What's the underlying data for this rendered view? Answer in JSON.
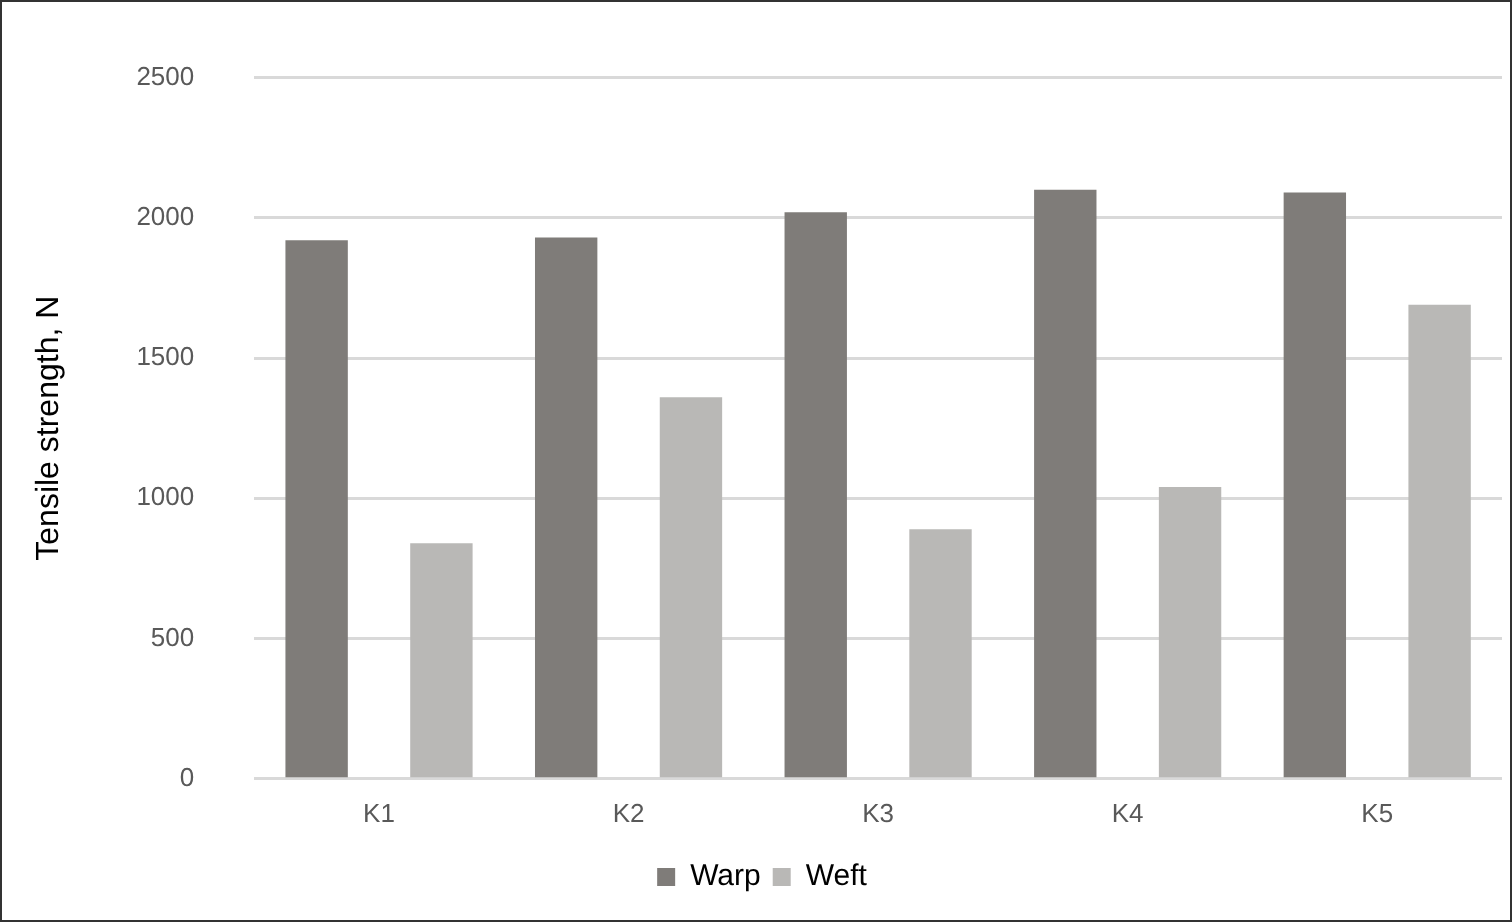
{
  "chart_data": {
    "type": "bar",
    "ylabel": "Tensile strength, N",
    "categories": [
      "K1",
      "K2",
      "K3",
      "K4",
      "K5"
    ],
    "series": [
      {
        "name": "Warp",
        "color": "#7f7c79",
        "values": [
          1920,
          1930,
          2020,
          2100,
          2090
        ]
      },
      {
        "name": "Weft",
        "color": "#b9b8b6",
        "values": [
          840,
          1360,
          890,
          1040,
          1690
        ]
      }
    ],
    "ylim": [
      0,
      2500
    ],
    "yticks": [
      0,
      500,
      1000,
      1500,
      2000,
      2500
    ],
    "grid": "y",
    "legend": "bottom"
  }
}
